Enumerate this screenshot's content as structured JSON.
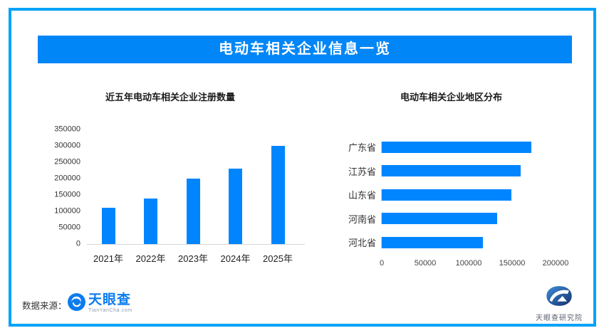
{
  "banner": {
    "title": "电动车相关企业信息一览"
  },
  "chart_data": [
    {
      "type": "bar",
      "orientation": "vertical",
      "title": "近五年电动车相关企业注册数量",
      "categories": [
        "2021年",
        "2022年",
        "2023年",
        "2024年",
        "2025年"
      ],
      "values": [
        110000,
        140000,
        200000,
        230000,
        300000
      ],
      "ylabel": "",
      "xlabel": "",
      "ylim": [
        0,
        350000
      ],
      "yticks": [
        0,
        50000,
        100000,
        150000,
        200000,
        250000,
        300000,
        350000
      ],
      "grid": false,
      "bar_color": "#0085FF"
    },
    {
      "type": "bar",
      "orientation": "horizontal",
      "title": "电动车相关企业地区分布",
      "categories": [
        "广东省",
        "江苏省",
        "山东省",
        "河南省",
        "河北省"
      ],
      "values": [
        172000,
        160000,
        149000,
        133000,
        116000
      ],
      "xlabel": "",
      "ylabel": "",
      "xlim": [
        0,
        200000
      ],
      "xticks": [
        0,
        50000,
        100000,
        150000,
        200000
      ],
      "grid": false,
      "bar_color": "#0085FF"
    }
  ],
  "footer": {
    "source_label": "数据来源：",
    "tyc_logo_text": "天眼查",
    "tyc_logo_sub": "TianYanCha.com",
    "institute_name": "天眼查研究院"
  },
  "colors": {
    "frame_border": "#00A3F7",
    "banner_bg": "#0086F6",
    "bar": "#0085FF",
    "tyc_blue": "#0B7CF0"
  }
}
